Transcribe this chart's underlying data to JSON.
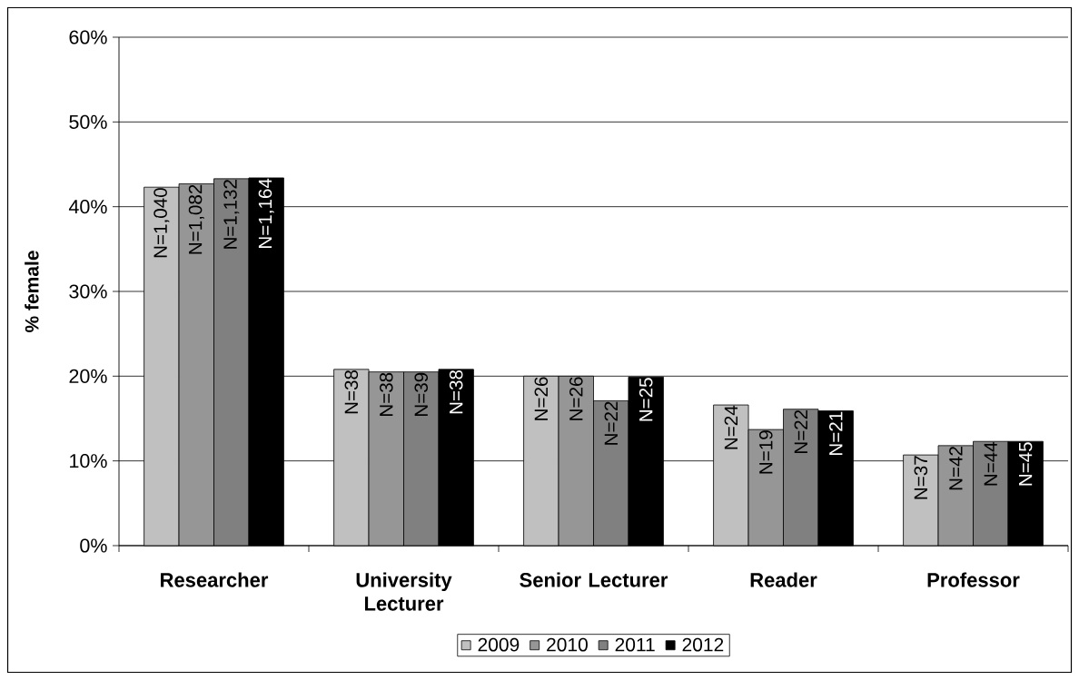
{
  "chart_data": {
    "type": "bar",
    "ylabel": "% female",
    "categories": [
      "Researcher",
      "University Lecturer",
      "Senior Lecturer",
      "Reader",
      "Professor"
    ],
    "series": [
      {
        "name": "2009",
        "color": "#c0c0c0",
        "values": [
          42.3,
          20.8,
          20.0,
          16.6,
          10.7
        ]
      },
      {
        "name": "2010",
        "color": "#969696",
        "values": [
          42.7,
          20.5,
          20.0,
          13.7,
          11.8
        ]
      },
      {
        "name": "2011",
        "color": "#808080",
        "values": [
          43.3,
          20.5,
          17.1,
          16.1,
          12.3
        ]
      },
      {
        "name": "2012",
        "color": "#000000",
        "values": [
          43.4,
          20.8,
          19.9,
          15.9,
          12.3
        ]
      }
    ],
    "annotations": [
      {
        "text": "N=1,040",
        "x": "Researcher",
        "y": 42.3
      },
      {
        "text": "N=1,082",
        "x": "Researcher",
        "y": 42.7
      },
      {
        "text": "N=1,132",
        "x": "Researcher",
        "y": 43.3
      },
      {
        "text": "N=1,164",
        "x": "Researcher",
        "y": 43.4
      },
      {
        "text": "N=38",
        "x": "University Lecturer",
        "y": 20.8
      },
      {
        "text": "N=38",
        "x": "University Lecturer",
        "y": 20.5
      },
      {
        "text": "N=39",
        "x": "University Lecturer",
        "y": 20.5
      },
      {
        "text": "N=38",
        "x": "University Lecturer",
        "y": 20.8
      },
      {
        "text": "N=26",
        "x": "Senior Lecturer",
        "y": 20.0
      },
      {
        "text": "N=26",
        "x": "Senior Lecturer",
        "y": 20.0
      },
      {
        "text": "N=22",
        "x": "Senior Lecturer",
        "y": 17.1
      },
      {
        "text": "N=25",
        "x": "Senior Lecturer",
        "y": 19.9
      },
      {
        "text": "N=24",
        "x": "Reader",
        "y": 16.6
      },
      {
        "text": "N=19",
        "x": "Reader",
        "y": 13.7
      },
      {
        "text": "N=22",
        "x": "Reader",
        "y": 16.1
      },
      {
        "text": "N=21",
        "x": "Reader",
        "y": 15.9
      },
      {
        "text": "N=37",
        "x": "Professor",
        "y": 10.7
      },
      {
        "text": "N=42",
        "x": "Professor",
        "y": 11.8
      },
      {
        "text": "N=44",
        "x": "Professor",
        "y": 12.3
      },
      {
        "text": "N=45",
        "x": "Professor",
        "y": 12.3
      }
    ],
    "ylim": [
      0,
      60
    ],
    "yticks": [
      {
        "value": 0,
        "label": "0%"
      },
      {
        "value": 10,
        "label": "10%"
      },
      {
        "value": 20,
        "label": "20%"
      },
      {
        "value": 30,
        "label": "30%"
      },
      {
        "value": 40,
        "label": "40%"
      },
      {
        "value": 50,
        "label": "50%"
      },
      {
        "value": 60,
        "label": "60%"
      }
    ],
    "grid": "y",
    "legend": "bottom"
  }
}
